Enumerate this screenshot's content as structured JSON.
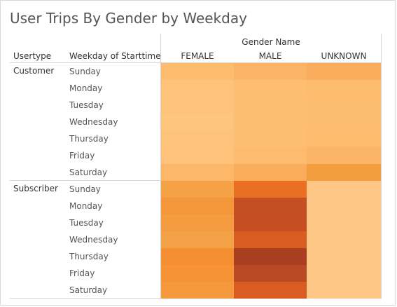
{
  "title": "User Trips By Gender by Weekday",
  "headers": {
    "usertype": "Usertype",
    "weekday": "Weekday of Starttime",
    "gender_name": "Gender Name"
  },
  "chart_data": {
    "type": "heatmap",
    "title": "User Trips By Gender by Weekday",
    "column_header": "Gender Name",
    "columns": [
      "FEMALE",
      "MALE",
      "UNKNOWN"
    ],
    "row_dimensions": [
      "Usertype",
      "Weekday of Starttime"
    ],
    "groups": [
      {
        "usertype": "Customer",
        "weekdays": [
          "Sunday",
          "Monday",
          "Tuesday",
          "Wednesday",
          "Thursday",
          "Friday",
          "Saturday"
        ],
        "colors": [
          [
            "#fdbc6e",
            "#fbb466",
            "#f9ad5c"
          ],
          [
            "#fec37a",
            "#fdbd72",
            "#fdbb6e"
          ],
          [
            "#fec37a",
            "#fdbd72",
            "#fdbd70"
          ],
          [
            "#fec57c",
            "#fdbe74",
            "#fdbd71"
          ],
          [
            "#fec37a",
            "#fdbd72",
            "#fdbb6e"
          ],
          [
            "#fec27a",
            "#fdbb6f",
            "#fbb567"
          ],
          [
            "#fcb768",
            "#f9ac5a",
            "#f49d3f"
          ]
        ]
      },
      {
        "usertype": "Subscriber",
        "weekdays": [
          "Sunday",
          "Monday",
          "Tuesday",
          "Wednesday",
          "Thursday",
          "Friday",
          "Saturday"
        ],
        "colors": [
          [
            "#f4a245",
            "#ea6f23",
            "#fec785"
          ],
          [
            "#f4973b",
            "#c44f22",
            "#fec785"
          ],
          [
            "#f49c40",
            "#c54f23",
            "#fec785"
          ],
          [
            "#f4a247",
            "#d95c22",
            "#fec785"
          ],
          [
            "#f68f32",
            "#a73f20",
            "#fec785"
          ],
          [
            "#f69335",
            "#b84a24",
            "#fec785"
          ],
          [
            "#f4993d",
            "#db5c23",
            "#fec785"
          ]
        ]
      }
    ]
  }
}
